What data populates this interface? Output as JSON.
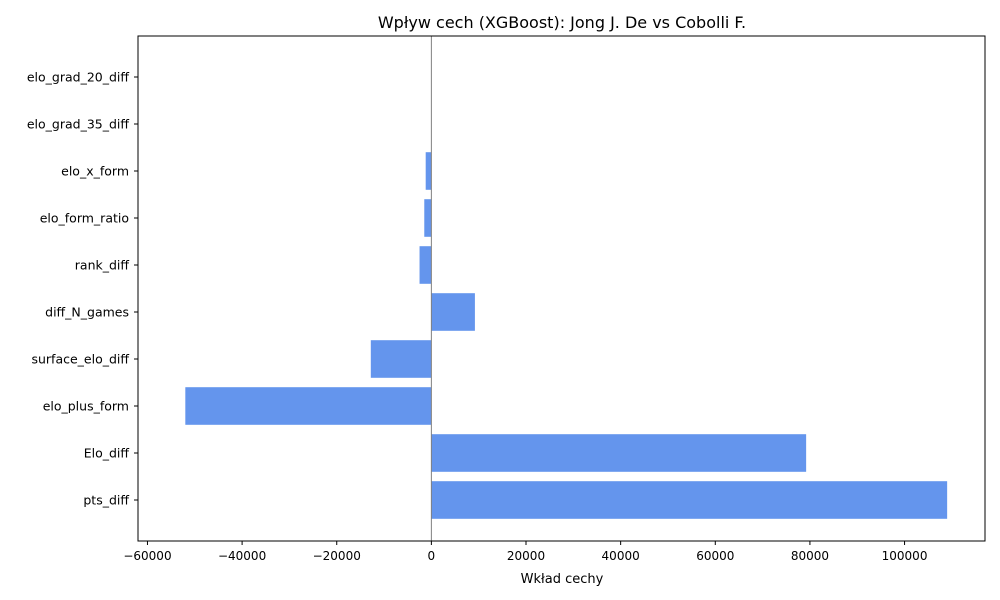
{
  "chart_data": {
    "type": "bar",
    "orientation": "horizontal",
    "title": "Wpływ cech (XGBoost): Jong J. De vs Cobolli F.",
    "xlabel": "Wkład cechy",
    "ylabel": "",
    "xlim": [
      -62000,
      117000
    ],
    "xticks": [
      -60000,
      -40000,
      -20000,
      0,
      20000,
      40000,
      60000,
      80000,
      100000
    ],
    "xtick_labels": [
      "−60000",
      "−40000",
      "−20000",
      "0",
      "20000",
      "40000",
      "60000",
      "80000",
      "100000"
    ],
    "categories": [
      "elo_grad_20_diff",
      "elo_grad_35_diff",
      "elo_x_form",
      "elo_form_ratio",
      "rank_diff",
      "diff_N_games",
      "surface_elo_diff",
      "elo_plus_form",
      "Elo_diff",
      "pts_diff"
    ],
    "values": [
      0,
      0,
      -1200,
      -1500,
      -2500,
      9200,
      -12800,
      -52000,
      79200,
      109000
    ],
    "bar_color": "#6495ED",
    "zero_line_color": "#808080",
    "grid": false
  }
}
